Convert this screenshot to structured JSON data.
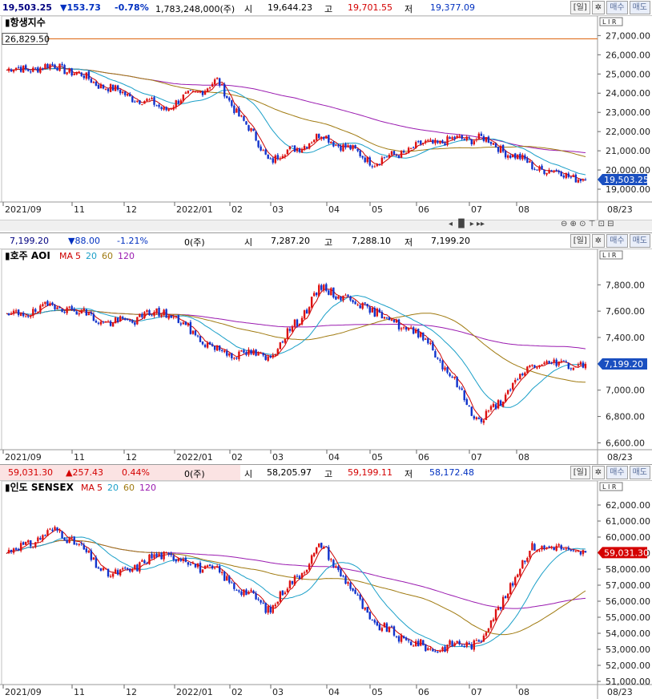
{
  "panels": [
    {
      "id": "hangseng",
      "header": {
        "last": "19,503.25",
        "change": "▼153.73",
        "pct": "-0.78%",
        "volume": "1,783,248,000(주)",
        "open_label": "시",
        "open": "19,644.23",
        "high_label": "고",
        "high": "19,701.55",
        "low_label": "저",
        "low": "19,377.09"
      },
      "buttons": {
        "period": "[일]",
        "settings": "✲",
        "buy": "매수",
        "sell": "매도"
      },
      "title": "항생지수",
      "ma_legend": [],
      "ref_line_label": "26,829.50",
      "last_badge": "19,503.25",
      "yticks": [
        "27,000.00",
        "26,000.00",
        "25,000.00",
        "24,000.00",
        "23,000.00",
        "22,000.00",
        "21,000.00",
        "20,000.00",
        "19,000.00"
      ],
      "xticks": [
        "2021/09",
        "11",
        "12",
        "2022/01",
        "02",
        "03",
        "04",
        "05",
        "06",
        "07",
        "08"
      ],
      "date_label": "08/23"
    },
    {
      "id": "asx",
      "header": {
        "last": "7,199.20",
        "change": "▼88.00",
        "pct": "-1.21%",
        "volume": "0(주)",
        "open_label": "시",
        "open": "7,287.20",
        "high_label": "고",
        "high": "7,288.10",
        "low_label": "저",
        "low": "7,199.20"
      },
      "buttons": {
        "period": "[일]",
        "settings": "✲",
        "buy": "매수",
        "sell": "매도"
      },
      "title": "호주 AOI",
      "ma_legend": [
        {
          "text": "MA",
          "color": "#cc0000"
        },
        {
          "text": "5",
          "color": "#cc0000"
        },
        {
          "text": "20",
          "color": "#1a9fc8"
        },
        {
          "text": "60",
          "color": "#a07a10"
        },
        {
          "text": "120",
          "color": "#9a1ab0"
        }
      ],
      "last_badge": "7,199.20",
      "yticks": [
        "7,800.00",
        "7,600.00",
        "7,400.00",
        "7,200.00",
        "7,000.00",
        "6,800.00",
        "6,600.00"
      ],
      "xticks": [
        "2021/09",
        "11",
        "12",
        "2022/01",
        "02",
        "03",
        "04",
        "05",
        "06",
        "07",
        "08"
      ],
      "date_label": "08/23"
    },
    {
      "id": "sensex",
      "header": {
        "last": "59,031.30",
        "change": "▲257.43",
        "pct": "0.44%",
        "volume": "0(주)",
        "open_label": "시",
        "open": "58,205.97",
        "high_label": "고",
        "high": "59,199.11",
        "low_label": "저",
        "low": "58,172.48"
      },
      "buttons": {
        "period": "[일]",
        "settings": "✲",
        "buy": "매수",
        "sell": "매도"
      },
      "title": "인도 SENSEX",
      "ma_legend": [
        {
          "text": "MA",
          "color": "#cc0000"
        },
        {
          "text": "5",
          "color": "#cc0000"
        },
        {
          "text": "20",
          "color": "#1a9fc8"
        },
        {
          "text": "60",
          "color": "#a07a10"
        },
        {
          "text": "120",
          "color": "#9a1ab0"
        }
      ],
      "last_badge": "59,031.30",
      "yticks": [
        "62,000.00",
        "61,000.00",
        "60,000.00",
        "59,000.00",
        "58,000.00",
        "57,000.00",
        "56,000.00",
        "55,000.00",
        "54,000.00",
        "53,000.00",
        "52,000.00",
        "51,000.00"
      ],
      "xticks": [
        "2021/09",
        "11",
        "12",
        "2022/01",
        "02",
        "03",
        "04",
        "05",
        "06",
        "07",
        "08"
      ],
      "date_label": "08/23"
    }
  ],
  "chart_data": [
    {
      "type": "line",
      "title": "항생지수",
      "x": [
        "2021/09",
        "11",
        "12",
        "2022/01",
        "02",
        "03",
        "04",
        "05",
        "06",
        "07",
        "08",
        "08/23"
      ],
      "series": [
        {
          "values": [
            25200,
            25400,
            24200,
            23200,
            24600,
            20500,
            21800,
            20400,
            21400,
            21700,
            20200,
            19503.25
          ]
        }
      ],
      "reference_line": 26829.5,
      "ylim": [
        18500,
        27600
      ],
      "colors": {
        "ma5": "#cc0000",
        "ma20": "#1a9fc8",
        "ma60": "#a07a10",
        "ma120": "#9a1ab0",
        "up": "#dd1111",
        "down": "#1133cc"
      }
    },
    {
      "type": "line",
      "title": "호주 AOI",
      "x": [
        "2021/09",
        "11",
        "12",
        "2022/01",
        "02",
        "03",
        "04",
        "05",
        "06",
        "07",
        "08",
        "08/23"
      ],
      "series": [
        {
          "name": "MA 5",
          "values": [
            7550,
            7650,
            7500,
            7600,
            7300,
            7250,
            7780,
            7600,
            7380,
            6750,
            7200,
            7199.2
          ]
        }
      ],
      "ylim": [
        6560,
        7960
      ],
      "colors": {
        "ma5": "#cc0000",
        "ma20": "#1a9fc8",
        "ma60": "#a07a10",
        "ma120": "#9a1ab0",
        "up": "#dd1111",
        "down": "#1133cc"
      }
    },
    {
      "type": "line",
      "title": "인도 SENSEX",
      "x": [
        "2021/09",
        "11",
        "12",
        "2022/01",
        "02",
        "03",
        "04",
        "05",
        "06",
        "07",
        "08",
        "08/23"
      ],
      "series": [
        {
          "name": "MA 5",
          "values": [
            59000,
            60500,
            57500,
            59000,
            57800,
            55500,
            59500,
            54500,
            53000,
            53500,
            59500,
            59031.3
          ]
        }
      ],
      "ylim": [
        50800,
        62600
      ],
      "colors": {
        "ma5": "#cc0000",
        "ma20": "#1a9fc8",
        "ma60": "#a07a10",
        "ma120": "#9a1ab0",
        "up": "#dd1111",
        "down": "#1133cc"
      }
    }
  ]
}
